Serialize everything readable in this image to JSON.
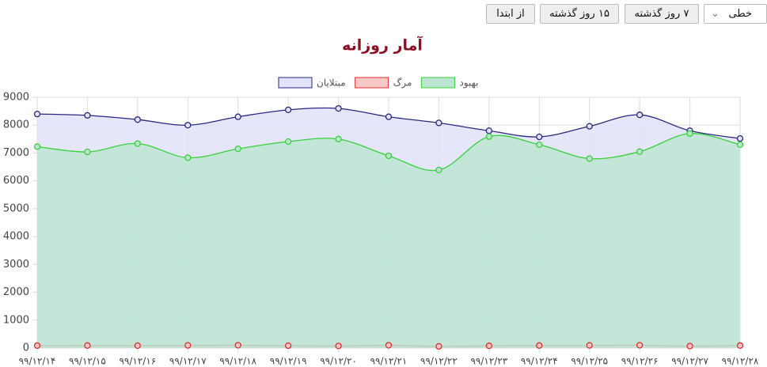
{
  "controls": {
    "from_start": "از ابتدا",
    "last_15": "۱۵ روز گذشته",
    "last_7": "۷ روز گذشته",
    "chart_kind": "خطی"
  },
  "chart_data": {
    "type": "line",
    "title": "آمار روزانه",
    "categories": [
      "۹۹/۱۲/۱۴",
      "۹۹/۱۲/۱۵",
      "۹۹/۱۲/۱۶",
      "۹۹/۱۲/۱۷",
      "۹۹/۱۲/۱۸",
      "۹۹/۱۲/۱۹",
      "۹۹/۱۲/۲۰",
      "۹۹/۱۲/۲۱",
      "۹۹/۱۲/۲۲",
      "۹۹/۱۲/۲۳",
      "۹۹/۱۲/۲۴",
      "۹۹/۱۲/۲۵",
      "۹۹/۱۲/۲۶",
      "۹۹/۱۲/۲۷",
      "۹۹/۱۲/۲۸"
    ],
    "series": [
      {
        "name": "مبتلایان",
        "color": "#27297f",
        "fill_color": "#e2e2fa",
        "values": [
          8400,
          8350,
          8200,
          8000,
          8300,
          8550,
          8600,
          8300,
          8080,
          7800,
          7580,
          7960,
          8370,
          7800,
          7520
        ]
      },
      {
        "name": "مرگ",
        "color": "#d9302f",
        "fill_color": "#f7c6c6",
        "values": [
          88,
          90,
          85,
          95,
          100,
          85,
          75,
          100,
          60,
          80,
          90,
          95,
          100,
          70,
          90
        ]
      },
      {
        "name": "بهبود",
        "color": "#39d13a",
        "fill_color": "#bce5d1",
        "values": [
          7230,
          7040,
          7340,
          6830,
          7150,
          7410,
          7500,
          6900,
          6390,
          7590,
          7300,
          6800,
          7050,
          7700,
          7300
        ]
      }
    ],
    "ylim": [
      0,
      9000
    ],
    "yticks": [
      0,
      1000,
      2000,
      3000,
      4000,
      5000,
      6000,
      7000,
      8000,
      9000
    ],
    "grid": true,
    "smooth": true,
    "area": true
  }
}
